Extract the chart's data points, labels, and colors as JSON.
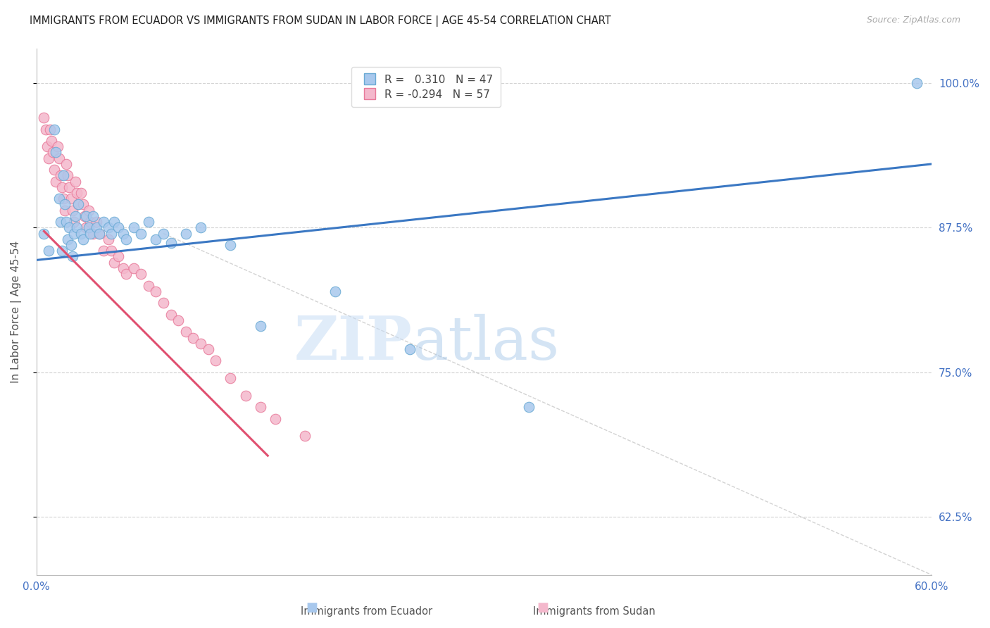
{
  "title": "IMMIGRANTS FROM ECUADOR VS IMMIGRANTS FROM SUDAN IN LABOR FORCE | AGE 45-54 CORRELATION CHART",
  "source": "Source: ZipAtlas.com",
  "ylabel": "In Labor Force | Age 45-54",
  "xlim": [
    0.0,
    0.6
  ],
  "ylim": [
    0.575,
    1.03
  ],
  "yticks": [
    0.625,
    0.75,
    0.875,
    1.0
  ],
  "xticks": [
    0.0,
    0.1,
    0.2,
    0.3,
    0.4,
    0.5,
    0.6
  ],
  "xtick_labels": [
    "0.0%",
    "",
    "",
    "",
    "",
    "",
    "60.0%"
  ],
  "ytick_labels_right": [
    "62.5%",
    "75.0%",
    "87.5%",
    "100.0%"
  ],
  "ecuador_color": "#a8c8ed",
  "sudan_color": "#f4b8cc",
  "ecuador_edge": "#6aaad4",
  "sudan_edge": "#e87a9a",
  "ecuador_line_color": "#3b78c3",
  "sudan_line_color": "#e05070",
  "ref_line_color": "#c8c8c8",
  "axis_color": "#4472c4",
  "grid_color": "#d0d0d0",
  "title_color": "#222222",
  "legend_r_ecuador": "0.310",
  "legend_n_ecuador": "47",
  "legend_r_sudan": "-0.294",
  "legend_n_sudan": "57",
  "ecuador_x": [
    0.005,
    0.008,
    0.012,
    0.013,
    0.015,
    0.016,
    0.017,
    0.018,
    0.019,
    0.02,
    0.021,
    0.022,
    0.023,
    0.024,
    0.025,
    0.026,
    0.027,
    0.028,
    0.03,
    0.031,
    0.033,
    0.035,
    0.036,
    0.038,
    0.04,
    0.042,
    0.045,
    0.048,
    0.05,
    0.052,
    0.055,
    0.058,
    0.06,
    0.065,
    0.07,
    0.075,
    0.08,
    0.085,
    0.09,
    0.1,
    0.11,
    0.13,
    0.15,
    0.2,
    0.25,
    0.33,
    0.59
  ],
  "ecuador_y": [
    0.87,
    0.855,
    0.96,
    0.94,
    0.9,
    0.88,
    0.855,
    0.92,
    0.895,
    0.88,
    0.865,
    0.875,
    0.86,
    0.85,
    0.87,
    0.885,
    0.875,
    0.895,
    0.87,
    0.865,
    0.885,
    0.875,
    0.87,
    0.885,
    0.875,
    0.87,
    0.88,
    0.875,
    0.87,
    0.88,
    0.875,
    0.87,
    0.865,
    0.875,
    0.87,
    0.88,
    0.865,
    0.87,
    0.862,
    0.87,
    0.875,
    0.86,
    0.79,
    0.82,
    0.77,
    0.72,
    1.0
  ],
  "sudan_x": [
    0.005,
    0.006,
    0.007,
    0.008,
    0.009,
    0.01,
    0.011,
    0.012,
    0.013,
    0.014,
    0.015,
    0.016,
    0.017,
    0.018,
    0.019,
    0.02,
    0.021,
    0.022,
    0.023,
    0.024,
    0.025,
    0.026,
    0.027,
    0.028,
    0.03,
    0.031,
    0.032,
    0.033,
    0.035,
    0.036,
    0.038,
    0.04,
    0.042,
    0.045,
    0.048,
    0.05,
    0.052,
    0.055,
    0.058,
    0.06,
    0.065,
    0.07,
    0.075,
    0.08,
    0.085,
    0.09,
    0.095,
    0.1,
    0.105,
    0.11,
    0.115,
    0.12,
    0.13,
    0.14,
    0.15,
    0.16,
    0.18
  ],
  "sudan_y": [
    0.97,
    0.96,
    0.945,
    0.935,
    0.96,
    0.95,
    0.94,
    0.925,
    0.915,
    0.945,
    0.935,
    0.92,
    0.91,
    0.9,
    0.89,
    0.93,
    0.92,
    0.91,
    0.9,
    0.89,
    0.88,
    0.915,
    0.905,
    0.895,
    0.905,
    0.895,
    0.885,
    0.875,
    0.89,
    0.88,
    0.87,
    0.88,
    0.87,
    0.855,
    0.865,
    0.855,
    0.845,
    0.85,
    0.84,
    0.835,
    0.84,
    0.835,
    0.825,
    0.82,
    0.81,
    0.8,
    0.795,
    0.785,
    0.78,
    0.775,
    0.77,
    0.76,
    0.745,
    0.73,
    0.72,
    0.71,
    0.695
  ],
  "ecuador_line_x": [
    0.0,
    0.6
  ],
  "ecuador_line_y": [
    0.847,
    0.93
  ],
  "sudan_line_x": [
    0.005,
    0.155
  ],
  "sudan_line_y": [
    0.872,
    0.678
  ],
  "ref_line_x": [
    0.085,
    0.6
  ],
  "ref_line_y": [
    0.87,
    0.575
  ]
}
